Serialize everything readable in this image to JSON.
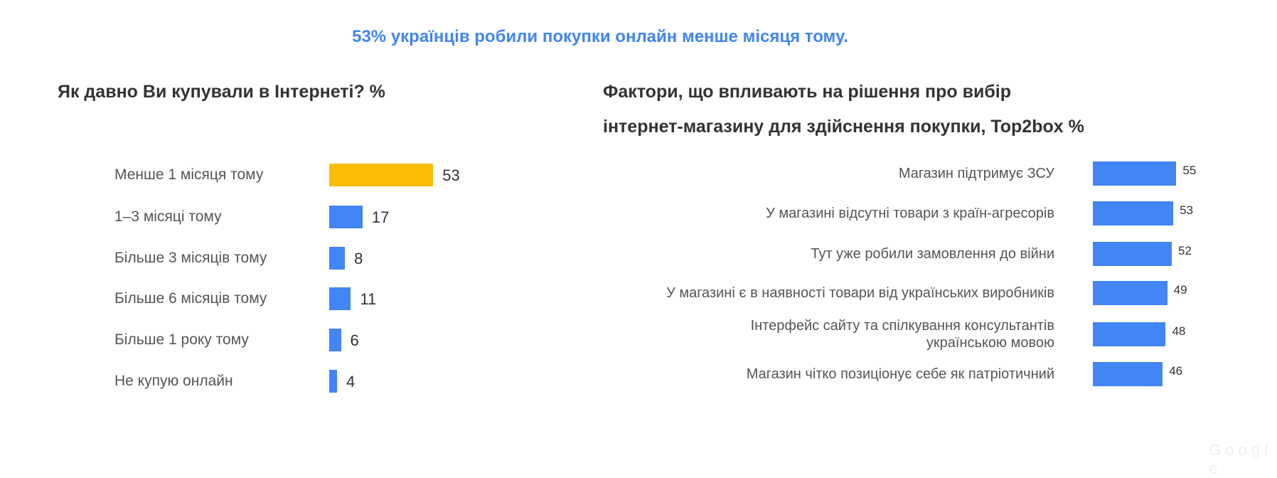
{
  "title": "53% українців робили покупки онлайн менше місяця тому.",
  "watermark": "Google",
  "colors": {
    "highlight": "#fbbc04",
    "bar": "#4285f4",
    "title": "#4285f4"
  },
  "chart_data": [
    {
      "type": "bar",
      "orientation": "horizontal",
      "title": "Як давно Ви купували в Інтернеті? %",
      "categories": [
        "Менше 1 місяця тому",
        "1–3 місяці тому",
        "Більше 3 місяців тому",
        "Більше 6 місяців тому",
        "Більше 1 року тому",
        "Не купую онлайн"
      ],
      "values": [
        53,
        17,
        8,
        11,
        6,
        4
      ],
      "highlighted": [
        "Менше 1 місяця тому"
      ],
      "grid": false
    },
    {
      "type": "bar",
      "orientation": "horizontal",
      "title": "Фактори, що впливають на рішення про вибір інтернет-магазину для здійснення покупки, Top2box %",
      "title_lines": [
        "Фактори, що впливають на рішення про вибір",
        "інтернет-магазину для здійснення покупки, Top2box %"
      ],
      "categories": [
        "Магазин підтримує ЗСУ",
        "У магазині відсутні товари з країн-агресорів",
        "Тут уже робили замовлення до війни",
        "У магазині є в наявності товари від українських виробників",
        "Інтерфейс сайту та спілкування консультантів українською мовою",
        "Магазин чітко позиціонує себе як патріотичний"
      ],
      "category_lines": [
        [
          "Магазин підтримує ЗСУ"
        ],
        [
          "У магазині відсутні товари з країн-агресорів"
        ],
        [
          "Тут уже робили замовлення до війни"
        ],
        [
          "У магазині є в наявності товари від українських виробників"
        ],
        [
          "Інтерфейс сайту та спілкування консультантів",
          "українською мовою"
        ],
        [
          "Магазин чітко позиціонує себе як патріотичний"
        ]
      ],
      "values": [
        55,
        53,
        52,
        49,
        48,
        46
      ],
      "grid": false
    }
  ]
}
